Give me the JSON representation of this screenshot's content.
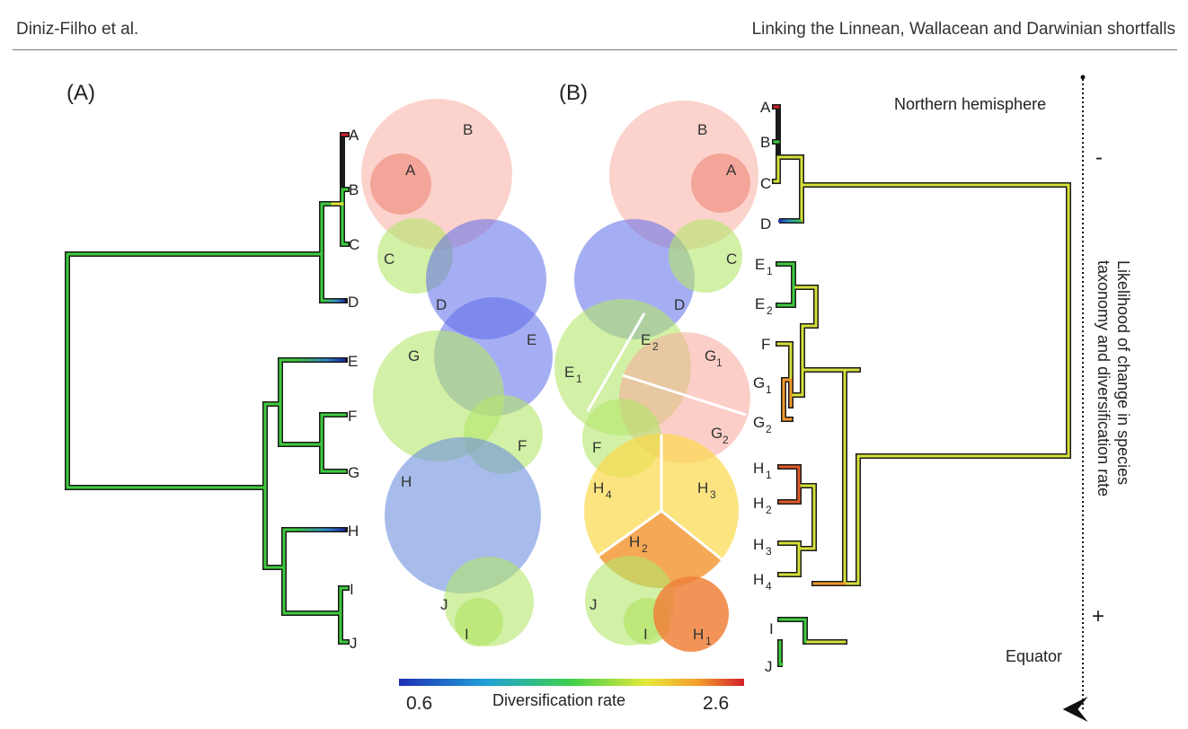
{
  "header": {
    "left": "Diniz-Filho et al.",
    "right": "Linking the Linnean, Wallacean and Darwinian shortfalls"
  },
  "figure": {
    "panel_a": {
      "label": "(A)",
      "tips": [
        "A",
        "B",
        "C",
        "D",
        "E",
        "F",
        "G",
        "H",
        "I",
        "J"
      ],
      "circles": [
        "B",
        "A",
        "C",
        "D",
        "E",
        "G",
        "F",
        "H",
        "J",
        "I"
      ]
    },
    "panel_b": {
      "label": "(B)",
      "circles": {
        "B": "B",
        "A": "A",
        "C": "C",
        "D": "D",
        "E2": "E",
        "E2_sub": "2",
        "E1": "E",
        "E1_sub": "1",
        "G1": "G",
        "G1_sub": "1",
        "G2": "G",
        "G2_sub": "2",
        "F": "F",
        "H4": "H",
        "H4_sub": "4",
        "H3": "H",
        "H3_sub": "3",
        "H2": "H",
        "H2_sub": "2",
        "J": "J",
        "I": "I",
        "H1": "H",
        "H1_sub": "1"
      },
      "tips": [
        {
          "l": "A",
          "s": ""
        },
        {
          "l": "B",
          "s": ""
        },
        {
          "l": "C",
          "s": ""
        },
        {
          "l": "D",
          "s": ""
        },
        {
          "l": "E",
          "s": "1"
        },
        {
          "l": "E",
          "s": "2"
        },
        {
          "l": "F",
          "s": ""
        },
        {
          "l": "G",
          "s": "1"
        },
        {
          "l": "G",
          "s": "2"
        },
        {
          "l": "H",
          "s": "1"
        },
        {
          "l": "H",
          "s": "2"
        },
        {
          "l": "H",
          "s": "3"
        },
        {
          "l": "H",
          "s": "4"
        },
        {
          "l": "I",
          "s": ""
        },
        {
          "l": "J",
          "s": ""
        }
      ]
    },
    "gradient": {
      "title": "Diversification rate",
      "min": "0.6",
      "max": "2.6"
    },
    "axis": {
      "top": "Northern hemisphere",
      "bottom": "Equator",
      "minus": "-",
      "plus": "+",
      "line1": "Likelihood of change in species",
      "line2": "taxonomy and diversification rate"
    },
    "colors": {
      "pink": "#f7a89a",
      "red_circle": "#ee7f6f",
      "lime": "#b4e66b",
      "blue": "#5d6bea",
      "steel": "#6c8fdd",
      "yellow": "#fbd84b",
      "orange": "#f0813a"
    }
  }
}
